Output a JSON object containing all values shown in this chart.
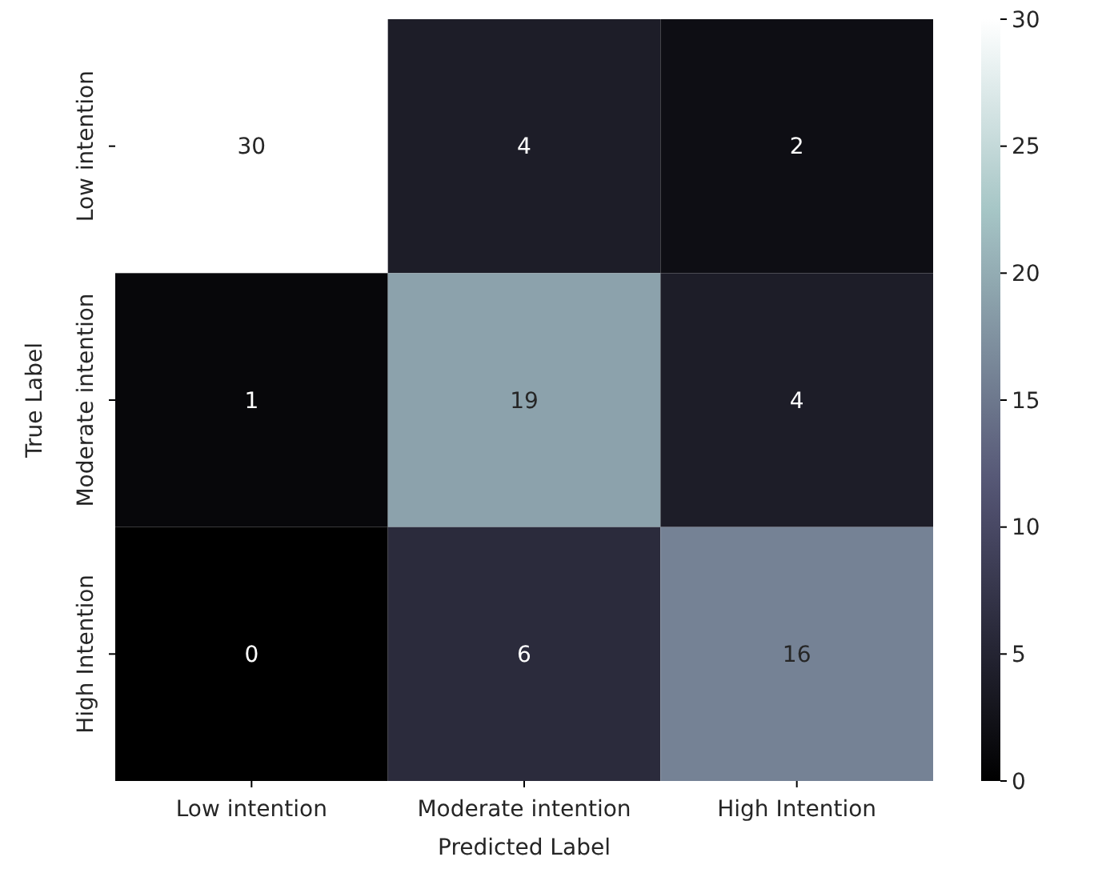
{
  "chart_data": {
    "type": "heatmap",
    "xlabel": "Predicted Label",
    "ylabel": "True Label",
    "categories": [
      "Low intention",
      "Moderate intention",
      "High Intention"
    ],
    "y_categories": [
      "Low intention",
      "Moderate intention",
      "High Intention"
    ],
    "cells": [
      [
        30,
        4,
        2
      ],
      [
        1,
        19,
        4
      ],
      [
        0,
        6,
        16
      ]
    ],
    "data_labels": true,
    "clim": [
      0,
      30
    ],
    "cticks": [
      0,
      5,
      10,
      15,
      20,
      25,
      30
    ]
  }
}
